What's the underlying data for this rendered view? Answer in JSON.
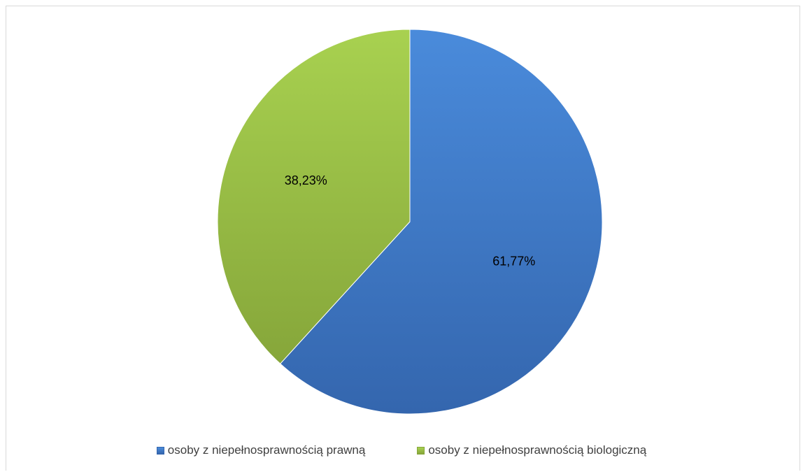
{
  "chart_data": {
    "type": "pie",
    "title": "",
    "start_angle_deg": 0,
    "direction": "clockwise",
    "legend_position": "bottom",
    "series": [
      {
        "categories": [
          "osoby z niepełnosprawnością prawną",
          "osoby z niepełnosprawnością biologiczną"
        ],
        "values": [
          61.77,
          38.23
        ],
        "labels": [
          "61,77%",
          "38,23%"
        ],
        "colors": [
          "#4472C4",
          "#9BBB59"
        ]
      }
    ]
  },
  "legend": {
    "items": [
      {
        "label": "osoby z niepełnosprawnością prawną",
        "color": "#4472C4"
      },
      {
        "label": "osoby z niepełnosprawnością biologiczną",
        "color": "#9BBB59"
      }
    ]
  }
}
